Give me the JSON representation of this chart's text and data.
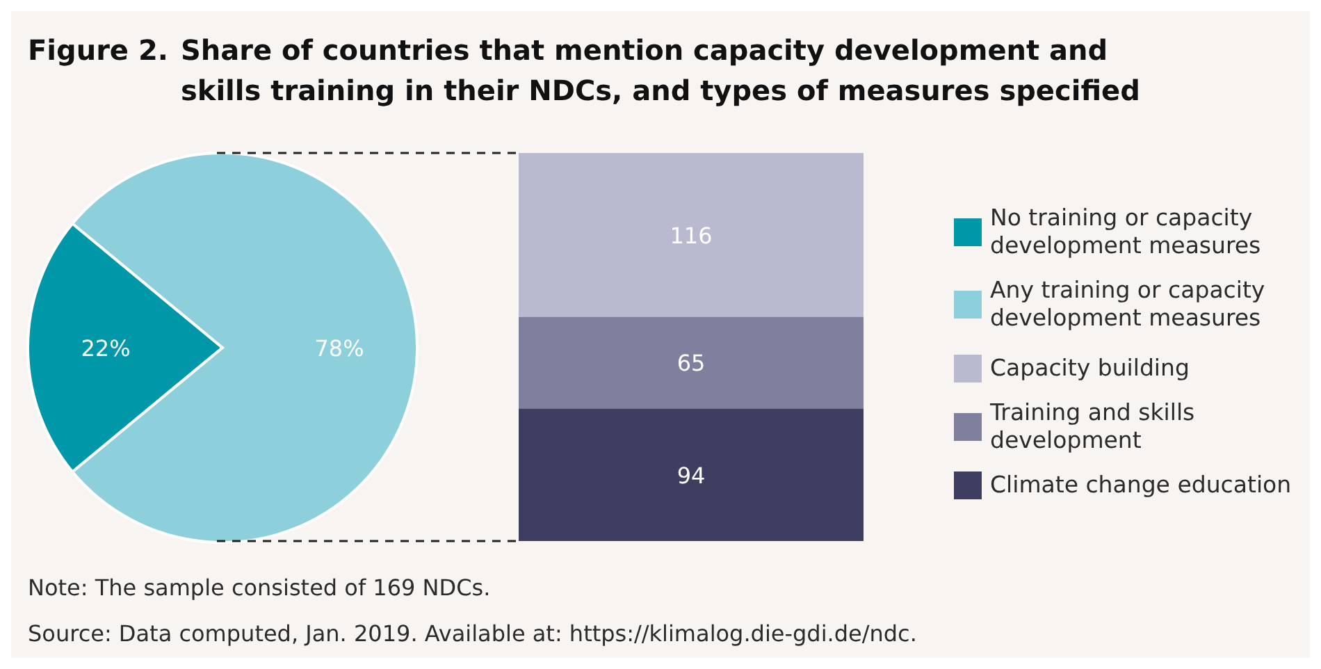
{
  "chart_data": [
    {
      "type": "pie",
      "title": "Figure 2.  Share of countries that mention capacity development and skills training in their NDCs, and types of measures specified",
      "categories": [
        "No training or capacity development measures",
        "Any training or capacity development measures"
      ],
      "values": [
        22,
        78
      ],
      "colors": [
        "#0097a9",
        "#8dd0dc"
      ],
      "value_labels": [
        "22%",
        "78%"
      ],
      "legend": "right"
    },
    {
      "type": "bar",
      "stacked": true,
      "categories": [
        null
      ],
      "data_labels": true,
      "legend": "right",
      "series": [
        {
          "name": "Climate change education",
          "color": "#3e3f60",
          "values": [
            94
          ]
        },
        {
          "name": "Training and skills development",
          "color": "#7f809e",
          "values": [
            65
          ]
        },
        {
          "name": "Capacity building",
          "color": "#b9b9cf",
          "values": [
            116
          ]
        }
      ],
      "annotations": [
        "Note: The sample consisted of 169 NDCs.",
        "Source: Data computed, Jan. 2019. Available at: https://klimalog.die-gdi.de/ndc."
      ]
    }
  ]
}
